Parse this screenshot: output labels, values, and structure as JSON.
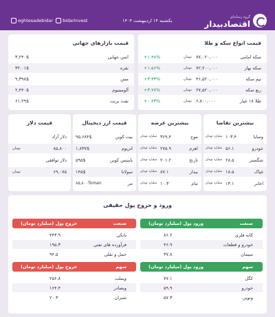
{
  "header": {
    "brand_sub": "گروه رسانه‌ای",
    "brand": "اقتصادبیدار",
    "date": "یکشنبه ۱۴ اردیبهشت ۱۴۰۴",
    "instagram": "bidarinvest",
    "telegram": "eghtesadebidar",
    "bg_color": "#6b3391"
  },
  "coins": {
    "title": "قیمت انواع سکه و طلا",
    "unit": "تومان",
    "rows": [
      {
        "name": "سکه امامی",
        "price": "۷۷,۰۲۰,۰۰۰",
        "change": "+۱.۴۸%"
      },
      {
        "name": "سکه بهار",
        "price": "۷۲,۲۰۰,۰۰۰",
        "change": "+۱.۵۶%"
      },
      {
        "name": "نیم سکه",
        "price": "۴۶,۵۲۰,۰۰۰",
        "change": "+۳.۳۳%"
      },
      {
        "name": "ربع سکه",
        "price": "۲۷,۵۲۰,۰۰۰",
        "change": "+۳.۷۷%"
      },
      {
        "name": "طلا ۱۸ عیار",
        "price": "۶,۸۰۰,۰۰۰",
        "change": "+۰.۴۳%"
      }
    ]
  },
  "world": {
    "title": "قیمت بازارهای جهانی",
    "rows": [
      {
        "name": "انس جهانی",
        "price": "۳,۲۴۰$"
      },
      {
        "name": "نقره",
        "price": "۳۲.۰۱$"
      },
      {
        "name": "مس",
        "price": "۹,۳۹۸$"
      },
      {
        "name": "آلومینیوم",
        "price": "۲,۴۴۰$"
      },
      {
        "name": "نفت برنت",
        "price": "۶۱.۲۹$"
      }
    ]
  },
  "demand": {
    "title": "بیشترین تقاضا",
    "unit": "میلیارد تومان",
    "rows": [
      {
        "name": "وسایا",
        "value": "۱۰۳.۴"
      },
      {
        "name": "خودرو",
        "value": "۵۶.۱"
      },
      {
        "name": "شگستر",
        "value": "۲۸.۵"
      },
      {
        "name": "غپاک",
        "value": "۱۸.۵"
      },
      {
        "name": "اخابر",
        "value": "۱۳.۱"
      }
    ]
  },
  "supply": {
    "title": "بیشترین عرضه",
    "unit": "میلیارد تومان",
    "rows": [
      {
        "name": "موج",
        "value": "۳۶۹.۴"
      },
      {
        "name": "اهرم",
        "value": "۲۷۵.۹"
      },
      {
        "name": "تارنج",
        "value": "۲۰۱.۲"
      },
      {
        "name": "بیدار",
        "value": "۸۷.۱"
      },
      {
        "name": "ثنام",
        "value": "۱۰.۳"
      }
    ]
  },
  "crypto": {
    "title": "قیمت ارز دیجیتال",
    "rows": [
      {
        "name": "بیت کوین",
        "price": "۹۵,۶۸۴$"
      },
      {
        "name": "اتریوم",
        "price": "۱,۸۳۷$"
      },
      {
        "name": "بایننس کوین",
        "price": "۵۹۵$"
      },
      {
        "name": "سولانا",
        "price": "۱۴۵$"
      },
      {
        "name": "تتر",
        "price": "۸۵,۸۰۰Toman"
      }
    ]
  },
  "dollar": {
    "title": "قیمت دلار",
    "unit": "تومان",
    "rows": [
      {
        "name": "دلار آزاد",
        "price": "۸۵,۸۰۰"
      },
      {
        "name": "دلار توافقی",
        "price": "۶۹,۰۷۵"
      }
    ]
  },
  "flow": {
    "title": "ورود و خروج پول حقیقی",
    "out_label": "خروج پول (میلیارد تومان)",
    "in_label": "ورود پول (میلیارد تومان)",
    "industry_label": "صنعت",
    "stock_label": "سهم",
    "out_industries": [
      {
        "name": "بانکی",
        "value": "۴۴۳.۹"
      },
      {
        "name": "فرآورده های نفتی",
        "value": "۱۹۵.۳"
      },
      {
        "name": "حمل و نقلی",
        "value": "۹۴.۵"
      }
    ],
    "in_industries": [
      {
        "name": "کانه فلزی",
        "value": "۸۶.۲"
      },
      {
        "name": "خودرو و قطعات",
        "value": "۴۶.۹"
      },
      {
        "name": "سیمان",
        "value": "۳۷.۸"
      }
    ],
    "out_stocks": [
      {
        "name": "وبملت",
        "value": "۲۵۶.۸"
      },
      {
        "name": "وبصادر",
        "value": "۱۶۴.۴"
      },
      {
        "name": "شتران",
        "value": "۲۰.۳"
      }
    ],
    "in_stocks": [
      {
        "name": "کگل",
        "value": "۷۷.۱"
      },
      {
        "name": "خودرو",
        "value": "۵۹.۹"
      },
      {
        "name": "ونوین",
        "value": "۵۷.۳"
      }
    ]
  }
}
